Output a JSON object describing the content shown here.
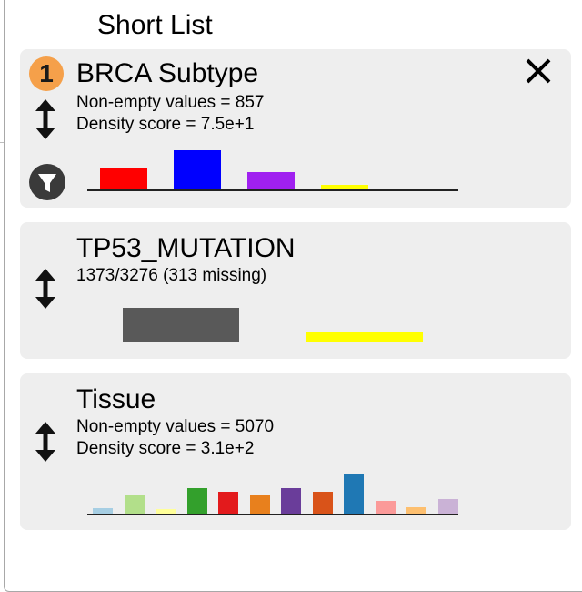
{
  "window": {
    "title": "Short List"
  },
  "cards": [
    {
      "title": "BRCA Subtype",
      "badge": "1",
      "lines": [
        "Non-empty values = 857",
        "Density score = 7.5e+1"
      ],
      "icons": {
        "move": "vertical-arrows-icon",
        "filter": "filter-icon",
        "close": "close-icon"
      },
      "histogram": [
        {
          "value": 23,
          "color": "#ff0000"
        },
        {
          "value": 42,
          "color": "#0000ff"
        },
        {
          "value": 19,
          "color": "#a020f0"
        },
        {
          "value": 6,
          "color": "#ffff00"
        },
        {
          "value": 1,
          "color": "#ffffff"
        }
      ],
      "max_value": 42
    },
    {
      "title": "TP53_MUTATION",
      "lines": [
        "1373/3276 (313 missing)"
      ],
      "icons": {
        "move": "vertical-arrows-icon"
      },
      "bars_floating": [
        {
          "value_low": 0.2,
          "value_high": 1.0,
          "color": "#595959"
        },
        {
          "value_low": 0.0,
          "value_high": 0.25,
          "color": "#ffff00"
        }
      ]
    },
    {
      "title": "Tissue",
      "lines": [
        "Non-empty values = 5070",
        "Density score = 3.1e+2"
      ],
      "icons": {
        "move": "vertical-arrows-icon"
      },
      "histogram": [
        {
          "value": 7,
          "color": "#a6cee3"
        },
        {
          "value": 21,
          "color": "#b2df8a"
        },
        {
          "value": 6,
          "color": "#ffff99"
        },
        {
          "value": 29,
          "color": "#33a02c"
        },
        {
          "value": 25,
          "color": "#e31a1c"
        },
        {
          "value": 21,
          "color": "#e8801d"
        },
        {
          "value": 29,
          "color": "#6a3d9a"
        },
        {
          "value": 25,
          "color": "#d95319"
        },
        {
          "value": 45,
          "color": "#1f78b4"
        },
        {
          "value": 15,
          "color": "#fb9a99"
        },
        {
          "value": 8,
          "color": "#fdbf6f"
        },
        {
          "value": 17,
          "color": "#cab2d6"
        }
      ],
      "max_value": 45
    }
  ]
}
